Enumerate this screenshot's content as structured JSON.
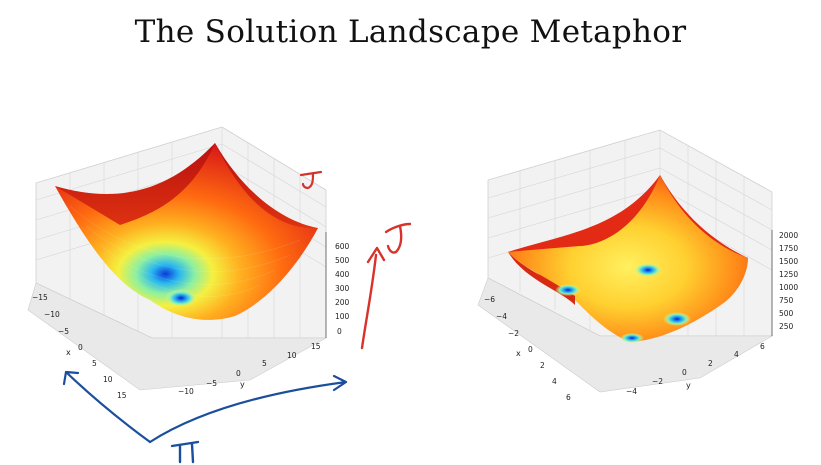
{
  "slide": {
    "title": "The Solution Landscape Metaphor"
  },
  "plots": [
    {
      "xlabel": "x",
      "ylabel": "y",
      "x_ticks": [
        "−15",
        "−10",
        "−5",
        "0",
        "5",
        "10",
        "15"
      ],
      "y_ticks": [
        "−10",
        "−5",
        "0",
        "5",
        "10",
        "15"
      ],
      "z_ticks": [
        "0",
        "100",
        "200",
        "300",
        "400",
        "500",
        "600"
      ]
    },
    {
      "xlabel": "x",
      "ylabel": "y",
      "x_ticks": [
        "−6",
        "−4",
        "−2",
        "0",
        "2",
        "4",
        "6"
      ],
      "y_ticks": [
        "−4",
        "−2",
        "0",
        "2",
        "4",
        "6"
      ],
      "z_ticks": [
        "250",
        "500",
        "750",
        "1000",
        "1250",
        "1500",
        "1750",
        "2000"
      ]
    }
  ],
  "annotations": {
    "theta_left": "J",
    "j_arrow": "J",
    "pi_mark": "π",
    "colors": {
      "red_ink": "#d8322a",
      "blue_ink": "#1b4f9c"
    }
  }
}
